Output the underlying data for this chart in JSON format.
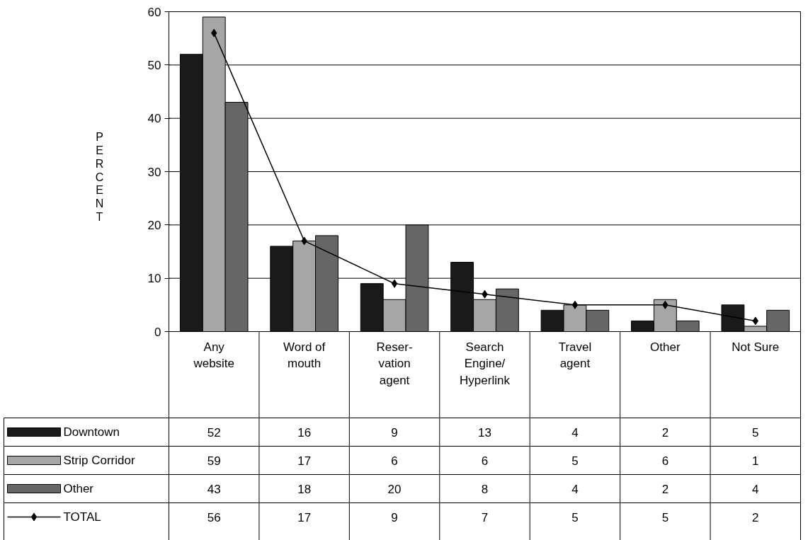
{
  "chart_data": {
    "type": "bar",
    "categories": [
      "Any\nwebsite",
      "Word of\nmouth",
      "Reser-\nvation\nagent",
      "Search\nEngine/\nHyperlink",
      "Travel\nagent",
      "Other",
      "Not Sure"
    ],
    "ylabel": "PERCENT",
    "ylim": [
      0,
      60
    ],
    "yticks": [
      0,
      10,
      20,
      30,
      40,
      50,
      60
    ],
    "grid": "y",
    "legend": "bottom left",
    "data_labels": true,
    "series": [
      {
        "name": "Downtown",
        "color": "#1a1a1a",
        "values": [
          52,
          16,
          9,
          13,
          4,
          2,
          5
        ]
      },
      {
        "name": "Strip Corridor",
        "color": "#a6a6a6",
        "values": [
          59,
          17,
          6,
          6,
          5,
          6,
          1
        ]
      },
      {
        "name": "Other",
        "color": "#666666",
        "values": [
          43,
          18,
          20,
          8,
          4,
          2,
          4
        ]
      },
      {
        "name": "TOTAL",
        "type": "line",
        "color": "#000000",
        "marker": "diamond",
        "values": [
          56,
          17,
          9,
          7,
          5,
          5,
          2
        ]
      }
    ]
  }
}
